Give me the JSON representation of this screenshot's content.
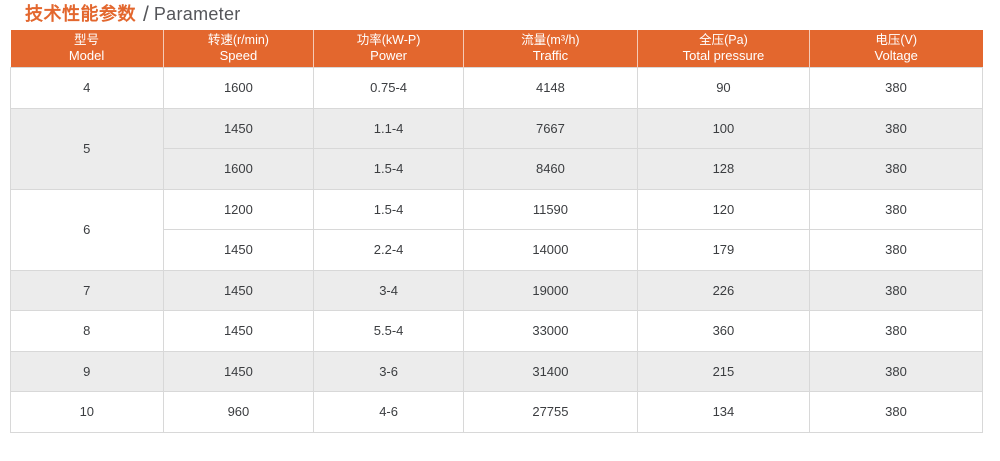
{
  "title": {
    "zh": "技术性能参数",
    "sep": "/",
    "en": "Parameter"
  },
  "colors": {
    "accent": "#e3672e",
    "row_alt": "#ececec",
    "border": "#d8d8d8",
    "body_text": "#3b3d40",
    "title_gray": "#55565a",
    "header_text": "#ffffff"
  },
  "table": {
    "headers": [
      {
        "zh": "型号",
        "en": "Model"
      },
      {
        "zh": "转速(r/min)",
        "en": "Speed"
      },
      {
        "zh": "功率(kW-P)",
        "en": "Power"
      },
      {
        "zh": "流量(m³/h)",
        "en": "Traffic"
      },
      {
        "zh": "全压(Pa)",
        "en": "Total pressure"
      },
      {
        "zh": "电压(V)",
        "en": "Voltage"
      }
    ],
    "rows": [
      {
        "model": "4",
        "speed": "1600",
        "power": "0.75-4",
        "traffic": "4148",
        "pressure": "90",
        "voltage": "380"
      },
      {
        "model": "5",
        "speed": "1450",
        "power": "1.1-4",
        "traffic": "7667",
        "pressure": "100",
        "voltage": "380"
      },
      {
        "speed": "1600",
        "power": "1.5-4",
        "traffic": "8460",
        "pressure": "128",
        "voltage": "380"
      },
      {
        "model": "6",
        "speed": "1200",
        "power": "1.5-4",
        "traffic": "11590",
        "pressure": "120",
        "voltage": "380"
      },
      {
        "speed": "1450",
        "power": "2.2-4",
        "traffic": "14000",
        "pressure": "179",
        "voltage": "380"
      },
      {
        "model": "7",
        "speed": "1450",
        "power": "3-4",
        "traffic": "19000",
        "pressure": "226",
        "voltage": "380"
      },
      {
        "model": "8",
        "speed": "1450",
        "power": "5.5-4",
        "traffic": "33000",
        "pressure": "360",
        "voltage": "380"
      },
      {
        "model": "9",
        "speed": "1450",
        "power": "3-6",
        "traffic": "31400",
        "pressure": "215",
        "voltage": "380"
      },
      {
        "model": "10",
        "speed": "960",
        "power": "4-6",
        "traffic": "27755",
        "pressure": "134",
        "voltage": "380"
      }
    ]
  }
}
